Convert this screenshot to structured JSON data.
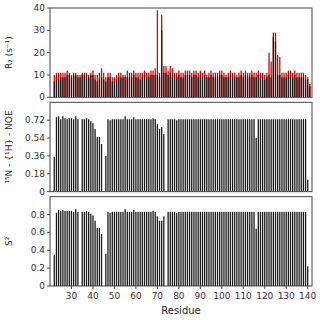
{
  "chart_data": [
    {
      "type": "bar",
      "ylabel": "R₂ (s⁻¹)",
      "x": [
        22,
        23,
        24,
        25,
        26,
        27,
        28,
        29,
        30,
        31,
        32,
        33,
        34,
        35,
        36,
        37,
        38,
        39,
        40,
        41,
        42,
        43,
        44,
        45,
        46,
        47,
        48,
        49,
        50,
        51,
        52,
        53,
        54,
        55,
        56,
        57,
        58,
        59,
        60,
        61,
        62,
        63,
        64,
        65,
        66,
        67,
        68,
        69,
        70,
        71,
        72,
        73,
        74,
        75,
        76,
        77,
        78,
        79,
        80,
        81,
        82,
        83,
        84,
        85,
        86,
        87,
        88,
        89,
        90,
        91,
        92,
        93,
        94,
        95,
        96,
        97,
        98,
        99,
        100,
        101,
        102,
        103,
        104,
        105,
        106,
        107,
        108,
        109,
        110,
        111,
        112,
        113,
        114,
        115,
        116,
        117,
        118,
        119,
        120,
        121,
        122,
        123,
        124,
        125,
        126,
        127,
        128,
        129,
        130,
        131,
        132,
        133,
        134,
        135,
        136,
        137,
        138,
        139,
        140,
        141
      ],
      "series": [
        {
          "color": "#dd0000",
          "values": [
            10,
            11,
            11,
            11,
            11,
            11,
            12,
            11,
            10,
            11,
            11,
            10,
            10,
            11,
            11,
            11,
            10,
            11,
            12,
            10,
            10,
            11,
            13,
            11,
            9,
            11,
            11,
            9,
            9,
            10,
            11,
            11,
            10,
            10,
            12,
            11,
            11,
            12,
            11,
            11,
            11,
            11,
            12,
            11,
            11,
            12,
            12,
            13,
            39,
            11,
            37,
            14,
            14,
            12,
            14,
            13,
            11,
            11,
            12,
            11,
            11,
            12,
            12,
            12,
            11,
            12,
            12,
            11,
            12,
            11,
            12,
            10,
            11,
            12,
            11,
            11,
            11,
            12,
            12,
            11,
            10,
            11,
            12,
            11,
            11,
            10,
            11,
            12,
            11,
            12,
            11,
            11,
            12,
            11,
            11,
            12,
            11,
            11,
            10,
            11,
            20,
            16,
            29,
            29,
            19,
            18,
            11,
            11,
            11,
            12,
            12,
            11,
            12,
            11,
            11,
            11,
            11,
            10,
            9,
            6
          ]
        },
        {
          "color": "#1a1a1a",
          "values": [
            7,
            8,
            8,
            9,
            9,
            9,
            10,
            10,
            9,
            10,
            10,
            9,
            9,
            10,
            10,
            10,
            9,
            10,
            10,
            8,
            7,
            8,
            9,
            8,
            7,
            9,
            9,
            7,
            7,
            8,
            9,
            9,
            9,
            9,
            9,
            9,
            9,
            10,
            9,
            9,
            8,
            9,
            10,
            9,
            9,
            10,
            10,
            10,
            10,
            9,
            30,
            11,
            11,
            10,
            11,
            10,
            9,
            9,
            10,
            9,
            9,
            10,
            10,
            10,
            9,
            10,
            10,
            9,
            10,
            9,
            10,
            9,
            9,
            10,
            9,
            9,
            9,
            10,
            10,
            9,
            9,
            9,
            10,
            9,
            9,
            9,
            9,
            10,
            9,
            10,
            9,
            9,
            10,
            9,
            9,
            10,
            9,
            9,
            8,
            9,
            10,
            9,
            27,
            25,
            10,
            10,
            9,
            9,
            9,
            10,
            10,
            9,
            10,
            9,
            9,
            9,
            9,
            8,
            8,
            5
          ]
        }
      ],
      "xlim": [
        20,
        142
      ],
      "ylim": [
        0,
        40
      ],
      "yticks": [
        0,
        10,
        20,
        30,
        40
      ],
      "tick_labels": "y",
      "grid": false
    },
    {
      "type": "bar",
      "ylabel": "¹⁵N - {¹H} - NOE",
      "x": [
        22,
        23,
        24,
        25,
        26,
        27,
        28,
        29,
        30,
        31,
        32,
        33,
        34,
        35,
        36,
        37,
        38,
        39,
        40,
        41,
        42,
        43,
        44,
        45,
        46,
        47,
        48,
        49,
        50,
        51,
        52,
        53,
        54,
        55,
        56,
        57,
        58,
        59,
        60,
        61,
        62,
        63,
        64,
        65,
        66,
        67,
        68,
        69,
        70,
        71,
        72,
        73,
        74,
        75,
        76,
        77,
        78,
        79,
        80,
        81,
        82,
        83,
        84,
        85,
        86,
        87,
        88,
        89,
        90,
        91,
        92,
        93,
        94,
        95,
        96,
        97,
        98,
        99,
        100,
        101,
        102,
        103,
        104,
        105,
        106,
        107,
        108,
        109,
        110,
        111,
        112,
        113,
        114,
        115,
        116,
        117,
        118,
        119,
        120,
        121,
        122,
        123,
        124,
        125,
        126,
        127,
        128,
        129,
        130,
        131,
        132,
        133,
        134,
        135,
        136,
        137,
        138,
        139,
        140,
        141
      ],
      "series": [
        {
          "color": "#1a1a1a",
          "values": [
            0.35,
            0.75,
            0.76,
            0.73,
            0.76,
            0.74,
            0.73,
            0.74,
            0.74,
            0.73,
            0.76,
            0.73,
            0.0,
            0.73,
            0.73,
            0.74,
            0.73,
            0.71,
            0.69,
            0.63,
            0.55,
            0.55,
            0.48,
            0.0,
            0.36,
            0.73,
            0.72,
            0.73,
            0.73,
            0.73,
            0.73,
            0.73,
            0.73,
            0.76,
            0.73,
            0.73,
            0.73,
            0.75,
            0.73,
            0.73,
            0.73,
            0.73,
            0.73,
            0.73,
            0.73,
            0.73,
            0.74,
            0.73,
            0.68,
            0.63,
            0.65,
            0.58,
            0.0,
            0.73,
            0.73,
            0.73,
            0.73,
            0.72,
            0.73,
            0.73,
            0.73,
            0.73,
            0.73,
            0.73,
            0.73,
            0.73,
            0.73,
            0.73,
            0.73,
            0.73,
            0.73,
            0.73,
            0.73,
            0.73,
            0.73,
            0.73,
            0.73,
            0.73,
            0.73,
            0.73,
            0.73,
            0.73,
            0.73,
            0.73,
            0.73,
            0.73,
            0.73,
            0.73,
            0.73,
            0.73,
            0.73,
            0.73,
            0.73,
            0.73,
            0.54,
            0.73,
            0.73,
            0.73,
            0.73,
            0.73,
            0.73,
            0.73,
            0.73,
            0.73,
            0.73,
            0.73,
            0.73,
            0.73,
            0.73,
            0.73,
            0.73,
            0.73,
            0.73,
            0.73,
            0.73,
            0.73,
            0.73,
            0.73,
            0.12,
            0.0
          ]
        }
      ],
      "xlim": [
        20,
        142
      ],
      "ylim": [
        0,
        0.9
      ],
      "yticks": [
        0,
        0.18,
        0.36,
        0.54,
        0.72
      ],
      "tick_labels": "y",
      "grid": false
    },
    {
      "type": "bar",
      "ylabel": "S²",
      "xlabel": "Residue",
      "x": [
        22,
        23,
        24,
        25,
        26,
        27,
        28,
        29,
        30,
        31,
        32,
        33,
        34,
        35,
        36,
        37,
        38,
        39,
        40,
        41,
        42,
        43,
        44,
        45,
        46,
        47,
        48,
        49,
        50,
        51,
        52,
        53,
        54,
        55,
        56,
        57,
        58,
        59,
        60,
        61,
        62,
        63,
        64,
        65,
        66,
        67,
        68,
        69,
        70,
        71,
        72,
        73,
        74,
        75,
        76,
        77,
        78,
        79,
        80,
        81,
        82,
        83,
        84,
        85,
        86,
        87,
        88,
        89,
        90,
        91,
        92,
        93,
        94,
        95,
        96,
        97,
        98,
        99,
        100,
        101,
        102,
        103,
        104,
        105,
        106,
        107,
        108,
        109,
        110,
        111,
        112,
        113,
        114,
        115,
        116,
        117,
        118,
        119,
        120,
        121,
        122,
        123,
        124,
        125,
        126,
        127,
        128,
        129,
        130,
        131,
        132,
        133,
        134,
        135,
        136,
        137,
        138,
        139,
        140,
        141
      ],
      "series": [
        {
          "color": "#1a1a1a",
          "values": [
            0.35,
            0.82,
            0.85,
            0.84,
            0.85,
            0.84,
            0.84,
            0.84,
            0.84,
            0.83,
            0.86,
            0.83,
            0.0,
            0.83,
            0.83,
            0.84,
            0.83,
            0.81,
            0.79,
            0.73,
            0.65,
            0.65,
            0.58,
            0.0,
            0.36,
            0.83,
            0.82,
            0.83,
            0.83,
            0.83,
            0.83,
            0.83,
            0.83,
            0.86,
            0.83,
            0.83,
            0.83,
            0.85,
            0.83,
            0.83,
            0.83,
            0.83,
            0.83,
            0.83,
            0.83,
            0.83,
            0.84,
            0.83,
            0.78,
            0.73,
            0.73,
            0.78,
            0.0,
            0.83,
            0.83,
            0.83,
            0.83,
            0.82,
            0.83,
            0.83,
            0.83,
            0.83,
            0.83,
            0.83,
            0.83,
            0.83,
            0.83,
            0.83,
            0.83,
            0.83,
            0.83,
            0.83,
            0.83,
            0.83,
            0.83,
            0.83,
            0.83,
            0.83,
            0.83,
            0.83,
            0.83,
            0.83,
            0.83,
            0.83,
            0.83,
            0.83,
            0.83,
            0.83,
            0.83,
            0.83,
            0.83,
            0.83,
            0.83,
            0.83,
            0.64,
            0.83,
            0.83,
            0.83,
            0.83,
            0.83,
            0.83,
            0.83,
            0.83,
            0.83,
            0.83,
            0.83,
            0.83,
            0.83,
            0.83,
            0.83,
            0.83,
            0.83,
            0.83,
            0.83,
            0.83,
            0.83,
            0.83,
            0.83,
            0.22,
            0.0
          ]
        }
      ],
      "xlim": [
        20,
        142
      ],
      "ylim": [
        0,
        1.0
      ],
      "yticks": [
        0,
        0.2,
        0.4,
        0.6,
        0.8
      ],
      "xticks": [
        30,
        40,
        50,
        60,
        70,
        80,
        90,
        100,
        110,
        120,
        130,
        140
      ],
      "grid": false
    }
  ]
}
